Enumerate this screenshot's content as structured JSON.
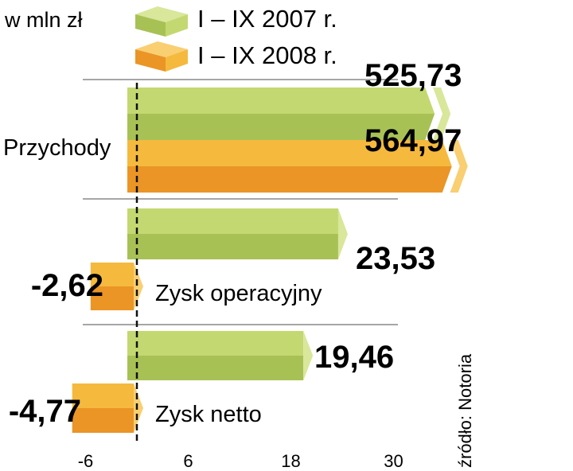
{
  "chart_data": {
    "type": "bar",
    "orientation": "horizontal",
    "unit_label": "w mln zł",
    "categories": [
      "Przychody",
      "Zysk operacyjny",
      "Zysk netto"
    ],
    "series": [
      {
        "name": "I – IX 2007 r.",
        "values": [
          525.73,
          23.53,
          19.46
        ]
      },
      {
        "name": "I – IX 2008 r.",
        "values": [
          564.97,
          -2.62,
          -4.77
        ]
      }
    ],
    "value_labels": [
      [
        "525,73",
        "23,53",
        "19,46"
      ],
      [
        "564,97",
        "-2,62",
        "-4,77"
      ]
    ],
    "x_ticks": [
      "-6",
      "6",
      "18",
      "30"
    ],
    "x_tick_values": [
      -6,
      6,
      18,
      30
    ],
    "xlim": [
      -6,
      30
    ],
    "axis_break": true,
    "source": "źródło: Notoria",
    "legend_position": "top",
    "grid": false,
    "colors": {
      "series_2007": "#c3d870",
      "series_2007_dark": "#a8c155",
      "series_2007_side": "#d8e79a",
      "series_2008": "#f5b93e",
      "series_2008_dark": "#ea9526",
      "series_2008_side": "#f9cf72",
      "separator": "#888888"
    }
  }
}
